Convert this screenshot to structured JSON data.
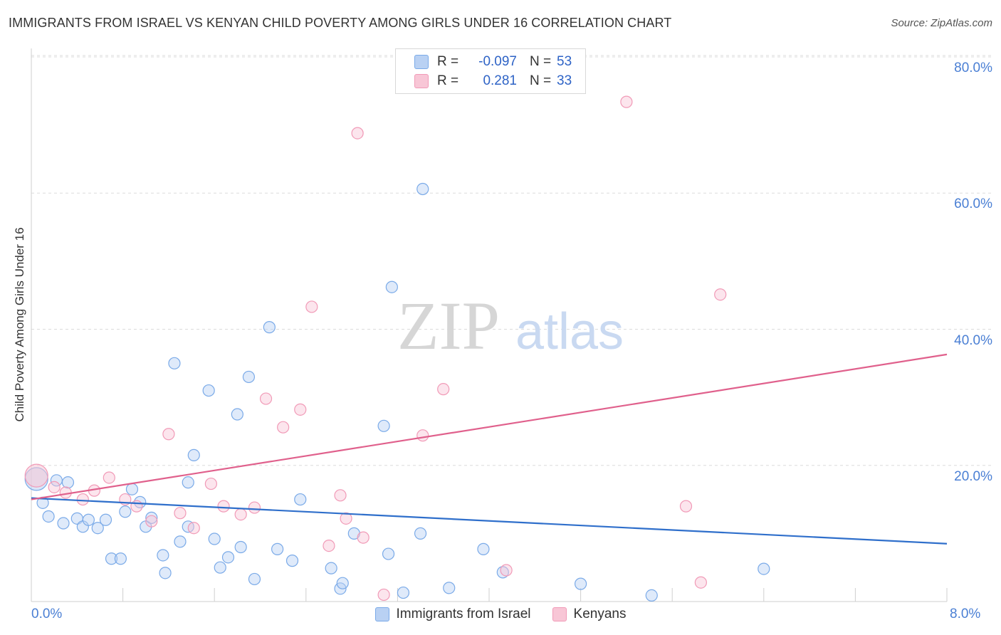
{
  "chart_data": {
    "type": "scatter",
    "title": "IMMIGRANTS FROM ISRAEL VS KENYAN CHILD POVERTY AMONG GIRLS UNDER 16 CORRELATION CHART",
    "source": "Source: ZipAtlas.com",
    "ylabel": "Child Poverty Among Girls Under 16",
    "xlim": [
      0,
      8
    ],
    "ylim": [
      0,
      80
    ],
    "x_tick_labels": [
      "0.0%",
      "8.0%"
    ],
    "y_ticks": [
      20,
      40,
      60,
      80
    ],
    "y_tick_labels": [
      "20.0%",
      "40.0%",
      "60.0%",
      "80.0%"
    ],
    "grid": true,
    "legend_position": "top-center",
    "watermark": "ZIPatlas",
    "series": [
      {
        "name": "Immigrants from Israel",
        "color": "#7aaae8",
        "fill": "#b9d1f3",
        "line_color": "#2f6fcb",
        "R": "-0.097",
        "N": "53",
        "trend": [
          [
            0,
            15.2
          ],
          [
            8,
            8.5
          ]
        ],
        "points": [
          [
            0.02,
            18.0
          ],
          [
            0.1,
            14.5
          ],
          [
            0.15,
            12.5
          ],
          [
            0.22,
            17.8
          ],
          [
            0.28,
            11.5
          ],
          [
            0.32,
            17.5
          ],
          [
            0.4,
            12.2
          ],
          [
            0.45,
            11.0
          ],
          [
            0.5,
            12.0
          ],
          [
            0.58,
            10.8
          ],
          [
            0.65,
            12.0
          ],
          [
            0.7,
            6.3
          ],
          [
            0.78,
            6.3
          ],
          [
            0.82,
            13.2
          ],
          [
            0.88,
            16.5
          ],
          [
            0.95,
            14.6
          ],
          [
            1.0,
            11.0
          ],
          [
            1.05,
            12.3
          ],
          [
            1.15,
            6.8
          ],
          [
            1.17,
            4.2
          ],
          [
            1.25,
            35.0
          ],
          [
            1.3,
            8.8
          ],
          [
            1.37,
            17.5
          ],
          [
            1.37,
            11.0
          ],
          [
            1.42,
            21.5
          ],
          [
            1.55,
            31.0
          ],
          [
            1.6,
            9.2
          ],
          [
            1.65,
            5.0
          ],
          [
            1.72,
            6.5
          ],
          [
            1.8,
            27.5
          ],
          [
            1.83,
            8.0
          ],
          [
            1.9,
            33.0
          ],
          [
            1.95,
            3.3
          ],
          [
            2.08,
            40.3
          ],
          [
            2.15,
            7.7
          ],
          [
            2.28,
            6.0
          ],
          [
            2.35,
            15.0
          ],
          [
            2.62,
            4.9
          ],
          [
            2.7,
            1.9
          ],
          [
            2.72,
            2.7
          ],
          [
            2.82,
            10.0
          ],
          [
            3.08,
            25.8
          ],
          [
            3.12,
            7.0
          ],
          [
            3.15,
            46.2
          ],
          [
            3.25,
            1.3
          ],
          [
            3.4,
            10.0
          ],
          [
            3.42,
            60.6
          ],
          [
            3.65,
            2.0
          ],
          [
            3.95,
            7.7
          ],
          [
            4.12,
            4.3
          ],
          [
            4.8,
            2.6
          ],
          [
            5.42,
            0.9
          ],
          [
            6.4,
            4.8
          ]
        ]
      },
      {
        "name": "Kenyans",
        "color": "#f19ab7",
        "fill": "#f8c6d6",
        "line_color": "#e0608c",
        "R": "0.281",
        "N": "33",
        "trend": [
          [
            0,
            15.0
          ],
          [
            8,
            36.3
          ]
        ],
        "points": [
          [
            0.02,
            18.5
          ],
          [
            0.2,
            16.8
          ],
          [
            0.3,
            16.0
          ],
          [
            0.45,
            15.0
          ],
          [
            0.55,
            16.3
          ],
          [
            0.68,
            18.2
          ],
          [
            0.82,
            15.0
          ],
          [
            0.92,
            14.0
          ],
          [
            1.05,
            11.8
          ],
          [
            1.2,
            24.6
          ],
          [
            1.3,
            13.0
          ],
          [
            1.42,
            10.8
          ],
          [
            1.57,
            17.3
          ],
          [
            1.68,
            14.0
          ],
          [
            1.83,
            12.8
          ],
          [
            1.95,
            13.8
          ],
          [
            2.05,
            29.8
          ],
          [
            2.2,
            25.6
          ],
          [
            2.35,
            28.2
          ],
          [
            2.45,
            43.3
          ],
          [
            2.6,
            8.2
          ],
          [
            2.7,
            15.6
          ],
          [
            2.75,
            12.2
          ],
          [
            2.85,
            68.8
          ],
          [
            2.9,
            9.4
          ],
          [
            3.08,
            1.0
          ],
          [
            3.42,
            24.4
          ],
          [
            3.6,
            31.2
          ],
          [
            4.15,
            4.6
          ],
          [
            5.2,
            73.4
          ],
          [
            5.72,
            14.0
          ],
          [
            5.85,
            2.8
          ],
          [
            6.02,
            45.1
          ]
        ]
      }
    ]
  },
  "legend": {
    "r_label": "R =",
    "n_label": "N ="
  }
}
